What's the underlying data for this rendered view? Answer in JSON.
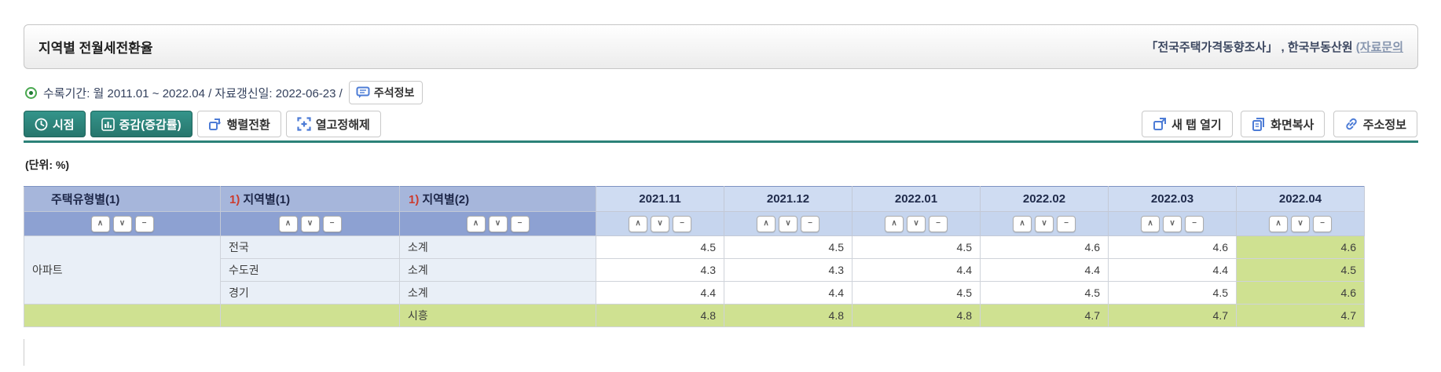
{
  "header": {
    "title": "지역별 전월세전환율",
    "source_text": "「전국주택가격동향조사」 , 한국부동산원 ",
    "source_link": "(자료문의"
  },
  "info": {
    "period_text": "수록기간: 월 2011.01 ~ 2022.04 / 자료갱신일: 2022-06-23 /",
    "annotation_button": "주석정보"
  },
  "toolbar": {
    "time_button": "시점",
    "delta_button": "증감(증감률)",
    "transpose_button": "행렬전환",
    "unfreeze_button": "열고정해제",
    "new_tab_button": "새 탭 열기",
    "copy_button": "화면복사",
    "address_button": "주소정보"
  },
  "unit_label": "(단위: %)",
  "table": {
    "dim_headers": [
      {
        "prefix": "",
        "label": "주택유형별(1)"
      },
      {
        "prefix": "1)",
        "label": "지역별(1)"
      },
      {
        "prefix": "1)",
        "label": "지역별(2)"
      }
    ],
    "time_headers": [
      "2021.11",
      "2021.12",
      "2022.01",
      "2022.02",
      "2022.03",
      "2022.04"
    ],
    "sort_glyphs": [
      "∧",
      "∨",
      "−"
    ],
    "highlighted_column": "2022.04",
    "rows": [
      {
        "housing_type": "아파트",
        "region1": "전국",
        "region2": "소계",
        "highlight": false,
        "values": [
          "4.5",
          "4.5",
          "4.5",
          "4.6",
          "4.6",
          "4.6"
        ]
      },
      {
        "housing_type": "",
        "region1": "수도권",
        "region2": "소계",
        "highlight": false,
        "values": [
          "4.3",
          "4.3",
          "4.4",
          "4.4",
          "4.4",
          "4.5"
        ]
      },
      {
        "housing_type": "",
        "region1": "경기",
        "region2": "소계",
        "highlight": false,
        "values": [
          "4.4",
          "4.4",
          "4.5",
          "4.5",
          "4.5",
          "4.6"
        ]
      },
      {
        "housing_type": "",
        "region1": "",
        "region2": "시흥",
        "highlight": true,
        "values": [
          "4.8",
          "4.8",
          "4.8",
          "4.7",
          "4.7",
          "4.7"
        ]
      }
    ]
  },
  "chart_data": {
    "type": "table",
    "title": "지역별 전월세전환율",
    "unit": "%",
    "categories": [
      "2021.11",
      "2021.12",
      "2022.01",
      "2022.02",
      "2022.03",
      "2022.04"
    ],
    "series": [
      {
        "name": "아파트 전국 소계",
        "values": [
          4.5,
          4.5,
          4.5,
          4.6,
          4.6,
          4.6
        ]
      },
      {
        "name": "아파트 수도권 소계",
        "values": [
          4.3,
          4.3,
          4.4,
          4.4,
          4.4,
          4.5
        ]
      },
      {
        "name": "아파트 경기 소계",
        "values": [
          4.4,
          4.4,
          4.5,
          4.5,
          4.5,
          4.6
        ]
      },
      {
        "name": "아파트 경기 시흥",
        "values": [
          4.8,
          4.8,
          4.8,
          4.7,
          4.7,
          4.7
        ]
      }
    ]
  },
  "colors": {
    "accent_teal": "#2c8278",
    "icon_blue": "#4d7cd6",
    "header_dim_bg": "#a6b6db",
    "header_dim_sub_bg": "#8da1d2",
    "header_time_bg": "#cfdcf2",
    "dim_cell_bg": "#e9eff7",
    "highlight_green": "#cfe191",
    "red_prefix": "#cc3b2e",
    "target_green": "#49a84f"
  }
}
